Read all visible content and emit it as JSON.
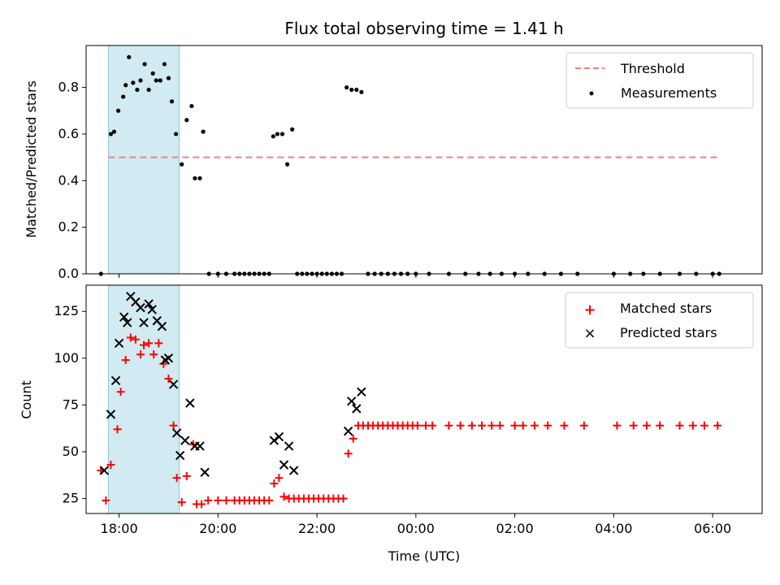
{
  "chart_data": [
    {
      "type": "scatter",
      "title": "Flux total observing time = 1.41 h",
      "xlabel": "",
      "ylabel": "Matched/Predicted stars",
      "ylim": [
        0,
        0.98
      ],
      "yticks": [
        "0.0",
        "0.2",
        "0.4",
        "0.6",
        "0.8"
      ],
      "xlim": [
        "17:20",
        "31:00"
      ],
      "shaded_region": {
        "x": [
          "17:47",
          "19:13"
        ],
        "color": "#add8e6"
      },
      "legend": {
        "position": "top-right",
        "entries": [
          "Threshold",
          "Measurements"
        ]
      },
      "threshold": {
        "name": "Threshold",
        "y": 0.5,
        "x": [
          "17:47",
          "30:07"
        ],
        "color": "#f08080"
      },
      "series": [
        {
          "name": "Measurements",
          "color": "#000000",
          "points": [
            [
              "17:38",
              0.0
            ],
            [
              "17:50",
              0.6
            ],
            [
              "17:54",
              0.61
            ],
            [
              "17:59",
              0.7
            ],
            [
              "18:05",
              0.76
            ],
            [
              "18:08",
              0.81
            ],
            [
              "18:12",
              0.93
            ],
            [
              "18:17",
              0.82
            ],
            [
              "18:22",
              0.79
            ],
            [
              "18:26",
              0.83
            ],
            [
              "18:31",
              0.9
            ],
            [
              "18:36",
              0.79
            ],
            [
              "18:41",
              0.86
            ],
            [
              "18:45",
              0.83
            ],
            [
              "18:50",
              0.83
            ],
            [
              "18:55",
              0.9
            ],
            [
              "19:00",
              0.84
            ],
            [
              "19:04",
              0.74
            ],
            [
              "19:09",
              0.6
            ],
            [
              "19:16",
              0.47
            ],
            [
              "19:22",
              0.66
            ],
            [
              "19:28",
              0.72
            ],
            [
              "19:32",
              0.41
            ],
            [
              "19:38",
              0.41
            ],
            [
              "19:42",
              0.61
            ],
            [
              "19:49",
              0.0
            ],
            [
              "20:00",
              0.0
            ],
            [
              "20:10",
              0.0
            ],
            [
              "20:20",
              0.0
            ],
            [
              "20:26",
              0.0
            ],
            [
              "20:32",
              0.0
            ],
            [
              "20:38",
              0.0
            ],
            [
              "20:44",
              0.0
            ],
            [
              "20:50",
              0.0
            ],
            [
              "20:56",
              0.0
            ],
            [
              "21:02",
              0.0
            ],
            [
              "21:07",
              0.59
            ],
            [
              "21:12",
              0.6
            ],
            [
              "21:18",
              0.6
            ],
            [
              "21:24",
              0.47
            ],
            [
              "21:30",
              0.62
            ],
            [
              "21:36",
              0.0
            ],
            [
              "21:42",
              0.0
            ],
            [
              "21:48",
              0.0
            ],
            [
              "21:54",
              0.0
            ],
            [
              "22:00",
              0.0
            ],
            [
              "22:06",
              0.0
            ],
            [
              "22:12",
              0.0
            ],
            [
              "22:18",
              0.0
            ],
            [
              "22:24",
              0.0
            ],
            [
              "22:30",
              0.0
            ],
            [
              "22:36",
              0.8
            ],
            [
              "22:42",
              0.79
            ],
            [
              "22:48",
              0.79
            ],
            [
              "22:54",
              0.78
            ],
            [
              "23:02",
              0.0
            ],
            [
              "23:10",
              0.0
            ],
            [
              "23:18",
              0.0
            ],
            [
              "23:26",
              0.0
            ],
            [
              "23:34",
              0.0
            ],
            [
              "23:42",
              0.0
            ],
            [
              "23:50",
              0.0
            ],
            [
              "24:00",
              0.0
            ],
            [
              "24:16",
              0.0
            ],
            [
              "24:40",
              0.0
            ],
            [
              "25:00",
              0.0
            ],
            [
              "25:16",
              0.0
            ],
            [
              "25:30",
              0.0
            ],
            [
              "25:44",
              0.0
            ],
            [
              "26:00",
              0.0
            ],
            [
              "26:16",
              0.0
            ],
            [
              "26:36",
              0.0
            ],
            [
              "26:56",
              0.0
            ],
            [
              "27:16",
              0.0
            ],
            [
              "28:00",
              0.0
            ],
            [
              "28:20",
              0.0
            ],
            [
              "28:36",
              0.0
            ],
            [
              "28:56",
              0.0
            ],
            [
              "29:20",
              0.0
            ],
            [
              "29:40",
              0.0
            ],
            [
              "30:00",
              0.0
            ],
            [
              "30:08",
              0.0
            ]
          ]
        }
      ]
    },
    {
      "type": "scatter",
      "title": "",
      "xlabel": "Time (UTC)",
      "ylabel": "Count",
      "ylim": [
        17,
        139
      ],
      "yticks": [
        "25",
        "50",
        "75",
        "100",
        "125"
      ],
      "xlim": [
        "17:20",
        "31:00"
      ],
      "xticks": [
        "18:00",
        "20:00",
        "22:00",
        "00:00",
        "02:00",
        "04:00",
        "06:00"
      ],
      "shaded_region": {
        "x": [
          "17:47",
          "19:13"
        ],
        "color": "#add8e6"
      },
      "legend": {
        "position": "top-right",
        "entries": [
          "Matched stars",
          "Predicted stars"
        ]
      },
      "series": [
        {
          "name": "Matched stars",
          "marker": "+",
          "color": "#ff0000",
          "points": [
            [
              "17:38",
              40
            ],
            [
              "17:44",
              24
            ],
            [
              "17:50",
              43
            ],
            [
              "17:58",
              62
            ],
            [
              "18:02",
              82
            ],
            [
              "18:08",
              99
            ],
            [
              "18:14",
              111
            ],
            [
              "18:20",
              110
            ],
            [
              "18:26",
              102
            ],
            [
              "18:30",
              107
            ],
            [
              "18:36",
              108
            ],
            [
              "18:42",
              102
            ],
            [
              "18:48",
              108
            ],
            [
              "18:54",
              97
            ],
            [
              "19:00",
              89
            ],
            [
              "19:06",
              64
            ],
            [
              "19:10",
              36
            ],
            [
              "19:16",
              23
            ],
            [
              "19:22",
              37
            ],
            [
              "19:30",
              54
            ],
            [
              "19:34",
              22
            ],
            [
              "19:40",
              22
            ],
            [
              "19:48",
              24
            ],
            [
              "20:00",
              24
            ],
            [
              "20:10",
              24
            ],
            [
              "20:20",
              24
            ],
            [
              "20:26",
              24
            ],
            [
              "20:32",
              24
            ],
            [
              "20:38",
              24
            ],
            [
              "20:44",
              24
            ],
            [
              "20:50",
              24
            ],
            [
              "20:56",
              24
            ],
            [
              "21:02",
              24
            ],
            [
              "21:08",
              33
            ],
            [
              "21:14",
              36
            ],
            [
              "21:20",
              26
            ],
            [
              "21:26",
              25
            ],
            [
              "21:32",
              25
            ],
            [
              "21:38",
              25
            ],
            [
              "21:44",
              25
            ],
            [
              "21:50",
              25
            ],
            [
              "21:56",
              25
            ],
            [
              "22:02",
              25
            ],
            [
              "22:08",
              25
            ],
            [
              "22:14",
              25
            ],
            [
              "22:20",
              25
            ],
            [
              "22:26",
              25
            ],
            [
              "22:32",
              25
            ],
            [
              "22:38",
              49
            ],
            [
              "22:44",
              57
            ],
            [
              "22:50",
              64
            ],
            [
              "22:56",
              64
            ],
            [
              "23:02",
              64
            ],
            [
              "23:08",
              64
            ],
            [
              "23:14",
              64
            ],
            [
              "23:20",
              64
            ],
            [
              "23:26",
              64
            ],
            [
              "23:32",
              64
            ],
            [
              "23:38",
              64
            ],
            [
              "23:44",
              64
            ],
            [
              "23:50",
              64
            ],
            [
              "23:56",
              64
            ],
            [
              "24:02",
              64
            ],
            [
              "24:12",
              64
            ],
            [
              "24:20",
              64
            ],
            [
              "24:40",
              64
            ],
            [
              "24:54",
              64
            ],
            [
              "25:08",
              64
            ],
            [
              "25:20",
              64
            ],
            [
              "25:32",
              64
            ],
            [
              "25:42",
              64
            ],
            [
              "26:00",
              64
            ],
            [
              "26:10",
              64
            ],
            [
              "26:24",
              64
            ],
            [
              "26:40",
              64
            ],
            [
              "27:00",
              64
            ],
            [
              "27:24",
              64
            ],
            [
              "28:04",
              64
            ],
            [
              "28:24",
              64
            ],
            [
              "28:40",
              64
            ],
            [
              "28:56",
              64
            ],
            [
              "29:20",
              64
            ],
            [
              "29:36",
              64
            ],
            [
              "29:50",
              64
            ],
            [
              "30:06",
              64
            ]
          ]
        },
        {
          "name": "Predicted stars",
          "marker": "x",
          "color": "#000000",
          "points": [
            [
              "17:42",
              40
            ],
            [
              "17:50",
              70
            ],
            [
              "17:56",
              88
            ],
            [
              "18:00",
              108
            ],
            [
              "18:06",
              122
            ],
            [
              "18:10",
              119
            ],
            [
              "18:14",
              133
            ],
            [
              "18:20",
              130
            ],
            [
              "18:26",
              127
            ],
            [
              "18:30",
              119
            ],
            [
              "18:36",
              129
            ],
            [
              "18:40",
              126
            ],
            [
              "18:46",
              120
            ],
            [
              "18:52",
              117
            ],
            [
              "18:56",
              99
            ],
            [
              "19:00",
              100
            ],
            [
              "19:06",
              86
            ],
            [
              "19:10",
              60
            ],
            [
              "19:14",
              48
            ],
            [
              "19:20",
              56
            ],
            [
              "19:26",
              76
            ],
            [
              "19:32",
              53
            ],
            [
              "19:38",
              53
            ],
            [
              "19:44",
              39
            ],
            [
              "21:08",
              56
            ],
            [
              "21:14",
              58
            ],
            [
              "21:20",
              43
            ],
            [
              "21:26",
              53
            ],
            [
              "21:32",
              40
            ],
            [
              "22:38",
              61
            ],
            [
              "22:42",
              77
            ],
            [
              "22:48",
              73
            ],
            [
              "22:54",
              82
            ]
          ]
        }
      ]
    }
  ]
}
